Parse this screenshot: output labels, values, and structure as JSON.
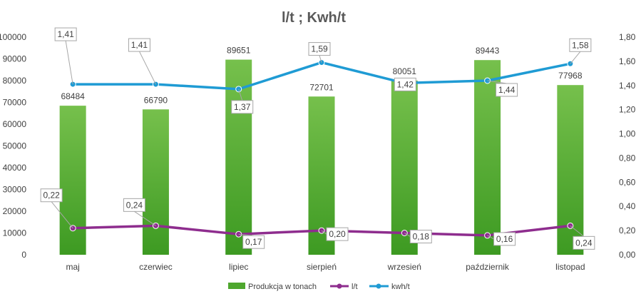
{
  "chart_data": {
    "type": "bar",
    "title": "l/t ; Kwh/t",
    "categories": [
      "maj",
      "czerwiec",
      "lipiec",
      "sierpień",
      "wrzesień",
      "październik",
      "listopad"
    ],
    "series": [
      {
        "name": "Produkcja w tonach",
        "type": "bar",
        "axis": "left",
        "color": "#4ea72e",
        "values": [
          68484,
          66790,
          89651,
          72701,
          80051,
          89443,
          77968
        ],
        "labels": [
          "68484",
          "66790",
          "89651",
          "72701",
          "80051",
          "89443",
          "77968"
        ]
      },
      {
        "name": "l/t",
        "type": "line",
        "axis": "right",
        "color": "#8e2d8e",
        "values": [
          0.22,
          0.24,
          0.17,
          0.2,
          0.18,
          0.16,
          0.24
        ],
        "labels": [
          "0,22",
          "0,24",
          "0,17",
          "0,20",
          "0,18",
          "0,16",
          "0,24"
        ]
      },
      {
        "name": "kwh/t",
        "type": "line",
        "axis": "right",
        "color": "#1f9bd4",
        "values": [
          1.41,
          1.41,
          1.37,
          1.59,
          1.42,
          1.44,
          1.58
        ],
        "labels": [
          "1,41",
          "1,41",
          "1,37",
          "1,59",
          "1,42",
          "1,44",
          "1,58"
        ]
      }
    ],
    "y_left": {
      "min": 0,
      "max": 100000,
      "step": 10000,
      "ticks": [
        "0",
        "10000",
        "20000",
        "30000",
        "40000",
        "50000",
        "60000",
        "70000",
        "80000",
        "90000",
        "100000"
      ]
    },
    "y_right": {
      "min": 0,
      "max": 1.8,
      "step": 0.2,
      "ticks": [
        "0,00",
        "0,20",
        "0,40",
        "0,60",
        "0,80",
        "1,00",
        "1,20",
        "1,40",
        "1,60",
        "1,80"
      ]
    },
    "grid": false,
    "legend_position": "bottom"
  }
}
